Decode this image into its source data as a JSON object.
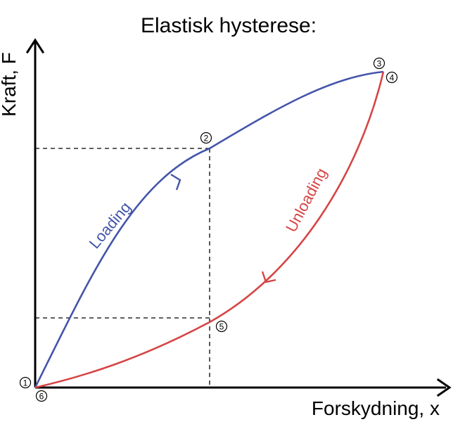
{
  "title": "Elastisk hysterese:",
  "y_axis_label": "Kraft, F",
  "x_axis_label": "Forskydning, x",
  "loading": {
    "label": "Loading",
    "color": "#4455aa"
  },
  "unloading": {
    "label": "Unloading",
    "color": "#d64545"
  },
  "points": [
    {
      "id": "1",
      "label": "1"
    },
    {
      "id": "2",
      "label": "2"
    },
    {
      "id": "3",
      "label": "3"
    },
    {
      "id": "4",
      "label": "4"
    },
    {
      "id": "5",
      "label": "5"
    },
    {
      "id": "6",
      "label": "6"
    }
  ],
  "line_color": "#000000"
}
